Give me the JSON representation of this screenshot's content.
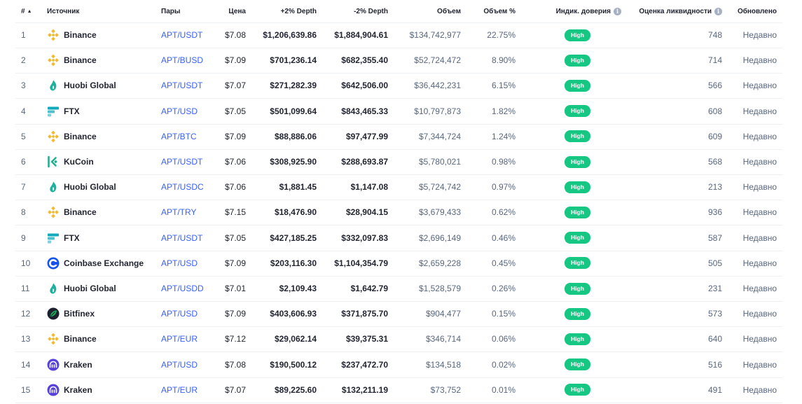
{
  "headers": {
    "num": "#",
    "source": "Источник",
    "pairs": "Пары",
    "price": "Цена",
    "plus_depth": "+2% Depth",
    "minus_depth": "-2% Depth",
    "volume": "Объем",
    "volume_pct": "Объем %",
    "confidence": "Индик. доверия",
    "liquidity": "Оценка ликвидности",
    "updated": "Обновлено"
  },
  "icons": {
    "sort": "sort-ascending-icon",
    "info": "info-icon"
  },
  "colors": {
    "link": "#3861fb",
    "badge": "#16c784",
    "binance": "#f3ba2f",
    "huobi": "#1eb29e",
    "ftx": "#11a9bc",
    "kucoin": "#23af91",
    "coinbase": "#1652f0",
    "bitfinex": "#1c2030",
    "kraken": "#5741d9"
  },
  "rows": [
    {
      "num": "1",
      "source": "Binance",
      "exchange": "binance",
      "pair": "APT/USDT",
      "price": "$7.08",
      "plus_depth": "$1,206,639.86",
      "minus_depth": "$1,884,904.61",
      "volume": "$134,742,977",
      "volume_pct": "22.75%",
      "confidence": "High",
      "liquidity": "748",
      "updated": "Недавно"
    },
    {
      "num": "2",
      "source": "Binance",
      "exchange": "binance",
      "pair": "APT/BUSD",
      "price": "$7.09",
      "plus_depth": "$701,236.14",
      "minus_depth": "$682,355.40",
      "volume": "$52,724,472",
      "volume_pct": "8.90%",
      "confidence": "High",
      "liquidity": "714",
      "updated": "Недавно"
    },
    {
      "num": "3",
      "source": "Huobi Global",
      "exchange": "huobi",
      "pair": "APT/USDT",
      "price": "$7.07",
      "plus_depth": "$271,282.39",
      "minus_depth": "$642,506.00",
      "volume": "$36,442,231",
      "volume_pct": "6.15%",
      "confidence": "High",
      "liquidity": "566",
      "updated": "Недавно"
    },
    {
      "num": "4",
      "source": "FTX",
      "exchange": "ftx",
      "pair": "APT/USD",
      "price": "$7.05",
      "plus_depth": "$501,099.64",
      "minus_depth": "$843,465.33",
      "volume": "$10,797,873",
      "volume_pct": "1.82%",
      "confidence": "High",
      "liquidity": "608",
      "updated": "Недавно"
    },
    {
      "num": "5",
      "source": "Binance",
      "exchange": "binance",
      "pair": "APT/BTC",
      "price": "$7.09",
      "plus_depth": "$88,886.06",
      "minus_depth": "$97,477.99",
      "volume": "$7,344,724",
      "volume_pct": "1.24%",
      "confidence": "High",
      "liquidity": "609",
      "updated": "Недавно"
    },
    {
      "num": "6",
      "source": "KuCoin",
      "exchange": "kucoin",
      "pair": "APT/USDT",
      "price": "$7.06",
      "plus_depth": "$308,925.90",
      "minus_depth": "$288,693.87",
      "volume": "$5,780,021",
      "volume_pct": "0.98%",
      "confidence": "High",
      "liquidity": "568",
      "updated": "Недавно"
    },
    {
      "num": "7",
      "source": "Huobi Global",
      "exchange": "huobi",
      "pair": "APT/USDC",
      "price": "$7.06",
      "plus_depth": "$1,881.45",
      "minus_depth": "$1,147.08",
      "volume": "$5,724,742",
      "volume_pct": "0.97%",
      "confidence": "High",
      "liquidity": "213",
      "updated": "Недавно"
    },
    {
      "num": "8",
      "source": "Binance",
      "exchange": "binance",
      "pair": "APT/TRY",
      "price": "$7.15",
      "plus_depth": "$18,476.90",
      "minus_depth": "$28,904.15",
      "volume": "$3,679,433",
      "volume_pct": "0.62%",
      "confidence": "High",
      "liquidity": "936",
      "updated": "Недавно"
    },
    {
      "num": "9",
      "source": "FTX",
      "exchange": "ftx",
      "pair": "APT/USDT",
      "price": "$7.05",
      "plus_depth": "$427,185.25",
      "minus_depth": "$332,097.83",
      "volume": "$2,696,149",
      "volume_pct": "0.46%",
      "confidence": "High",
      "liquidity": "587",
      "updated": "Недавно"
    },
    {
      "num": "10",
      "source": "Coinbase Exchange",
      "exchange": "coinbase",
      "pair": "APT/USD",
      "price": "$7.09",
      "plus_depth": "$203,116.30",
      "minus_depth": "$1,104,354.79",
      "volume": "$2,659,228",
      "volume_pct": "0.45%",
      "confidence": "High",
      "liquidity": "505",
      "updated": "Недавно"
    },
    {
      "num": "11",
      "source": "Huobi Global",
      "exchange": "huobi",
      "pair": "APT/USDD",
      "price": "$7.01",
      "plus_depth": "$2,109.43",
      "minus_depth": "$1,642.79",
      "volume": "$1,528,579",
      "volume_pct": "0.26%",
      "confidence": "High",
      "liquidity": "231",
      "updated": "Недавно"
    },
    {
      "num": "12",
      "source": "Bitfinex",
      "exchange": "bitfinex",
      "pair": "APT/USD",
      "price": "$7.09",
      "plus_depth": "$403,606.93",
      "minus_depth": "$371,875.70",
      "volume": "$904,477",
      "volume_pct": "0.15%",
      "confidence": "High",
      "liquidity": "573",
      "updated": "Недавно"
    },
    {
      "num": "13",
      "source": "Binance",
      "exchange": "binance",
      "pair": "APT/EUR",
      "price": "$7.12",
      "plus_depth": "$29,062.14",
      "minus_depth": "$39,375.31",
      "volume": "$346,714",
      "volume_pct": "0.06%",
      "confidence": "High",
      "liquidity": "640",
      "updated": "Недавно"
    },
    {
      "num": "14",
      "source": "Kraken",
      "exchange": "kraken",
      "pair": "APT/USD",
      "price": "$7.08",
      "plus_depth": "$190,500.12",
      "minus_depth": "$237,472.70",
      "volume": "$134,518",
      "volume_pct": "0.02%",
      "confidence": "High",
      "liquidity": "516",
      "updated": "Недавно"
    },
    {
      "num": "15",
      "source": "Kraken",
      "exchange": "kraken",
      "pair": "APT/EUR",
      "price": "$7.07",
      "plus_depth": "$89,225.60",
      "minus_depth": "$132,211.19",
      "volume": "$73,752",
      "volume_pct": "0.01%",
      "confidence": "High",
      "liquidity": "491",
      "updated": "Недавно"
    }
  ]
}
